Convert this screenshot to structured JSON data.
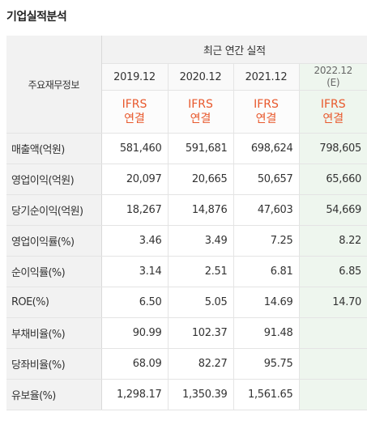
{
  "section_title": "기업실적분석",
  "header": {
    "row_label": "주요재무정보",
    "group_label": "최근 연간 실적",
    "years": [
      {
        "label": "2019.12",
        "sub": "",
        "basis_1": "IFRS",
        "basis_2": "연결"
      },
      {
        "label": "2020.12",
        "sub": "",
        "basis_1": "IFRS",
        "basis_2": "연결"
      },
      {
        "label": "2021.12",
        "sub": "",
        "basis_1": "IFRS",
        "basis_2": "연결"
      },
      {
        "label": "2022.12",
        "sub": "(E)",
        "basis_1": "IFRS",
        "basis_2": "연결"
      }
    ]
  },
  "rows": [
    {
      "label": "매출액(억원)",
      "values": [
        "581,460",
        "591,681",
        "698,624",
        "798,605"
      ]
    },
    {
      "label": "영업이익(억원)",
      "values": [
        "20,097",
        "20,665",
        "50,657",
        "65,660"
      ]
    },
    {
      "label": "당기순이익(억원)",
      "values": [
        "18,267",
        "14,876",
        "47,603",
        "54,669"
      ]
    },
    {
      "label": "영업이익률(%)",
      "values": [
        "3.46",
        "3.49",
        "7.25",
        "8.22"
      ]
    },
    {
      "label": "순이익률(%)",
      "values": [
        "3.14",
        "2.51",
        "6.81",
        "6.85"
      ]
    },
    {
      "label": "ROE(%)",
      "values": [
        "6.50",
        "5.05",
        "14.69",
        "14.70"
      ]
    },
    {
      "label": "부채비율(%)",
      "values": [
        "90.99",
        "102.37",
        "91.48",
        ""
      ]
    },
    {
      "label": "당좌비율(%)",
      "values": [
        "68.09",
        "82.27",
        "95.75",
        ""
      ]
    },
    {
      "label": "유보율(%)",
      "values": [
        "1,298.17",
        "1,350.39",
        "1,561.65",
        ""
      ]
    }
  ],
  "colors": {
    "ifrs_text": "#e8582c",
    "estimate_column_bg": "#eef6ee",
    "header_bg": "#f2f2f2"
  }
}
